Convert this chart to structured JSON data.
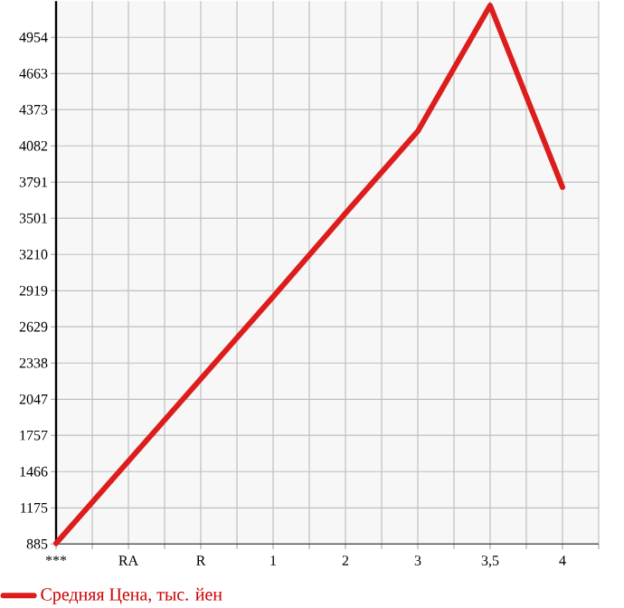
{
  "chart_data": {
    "type": "line",
    "categories": [
      "***",
      "RA",
      "R",
      "1",
      "2",
      "3",
      "3,5",
      "4"
    ],
    "series": [
      {
        "name": "Средняя Цена, тыс. йен",
        "color": "#dd1c1c",
        "values": [
          890,
          1550,
          2210,
          2870,
          3540,
          4200,
          5210,
          3750
        ]
      }
    ],
    "ylim": [
      885,
      5245
    ],
    "yticks": [
      885,
      1175,
      1466,
      1757,
      2047,
      2338,
      2629,
      2919,
      3210,
      3501,
      3791,
      4082,
      4373,
      4663,
      4954
    ],
    "grid": true,
    "legend": "bottom",
    "marker": "none",
    "line_style": "solid"
  }
}
